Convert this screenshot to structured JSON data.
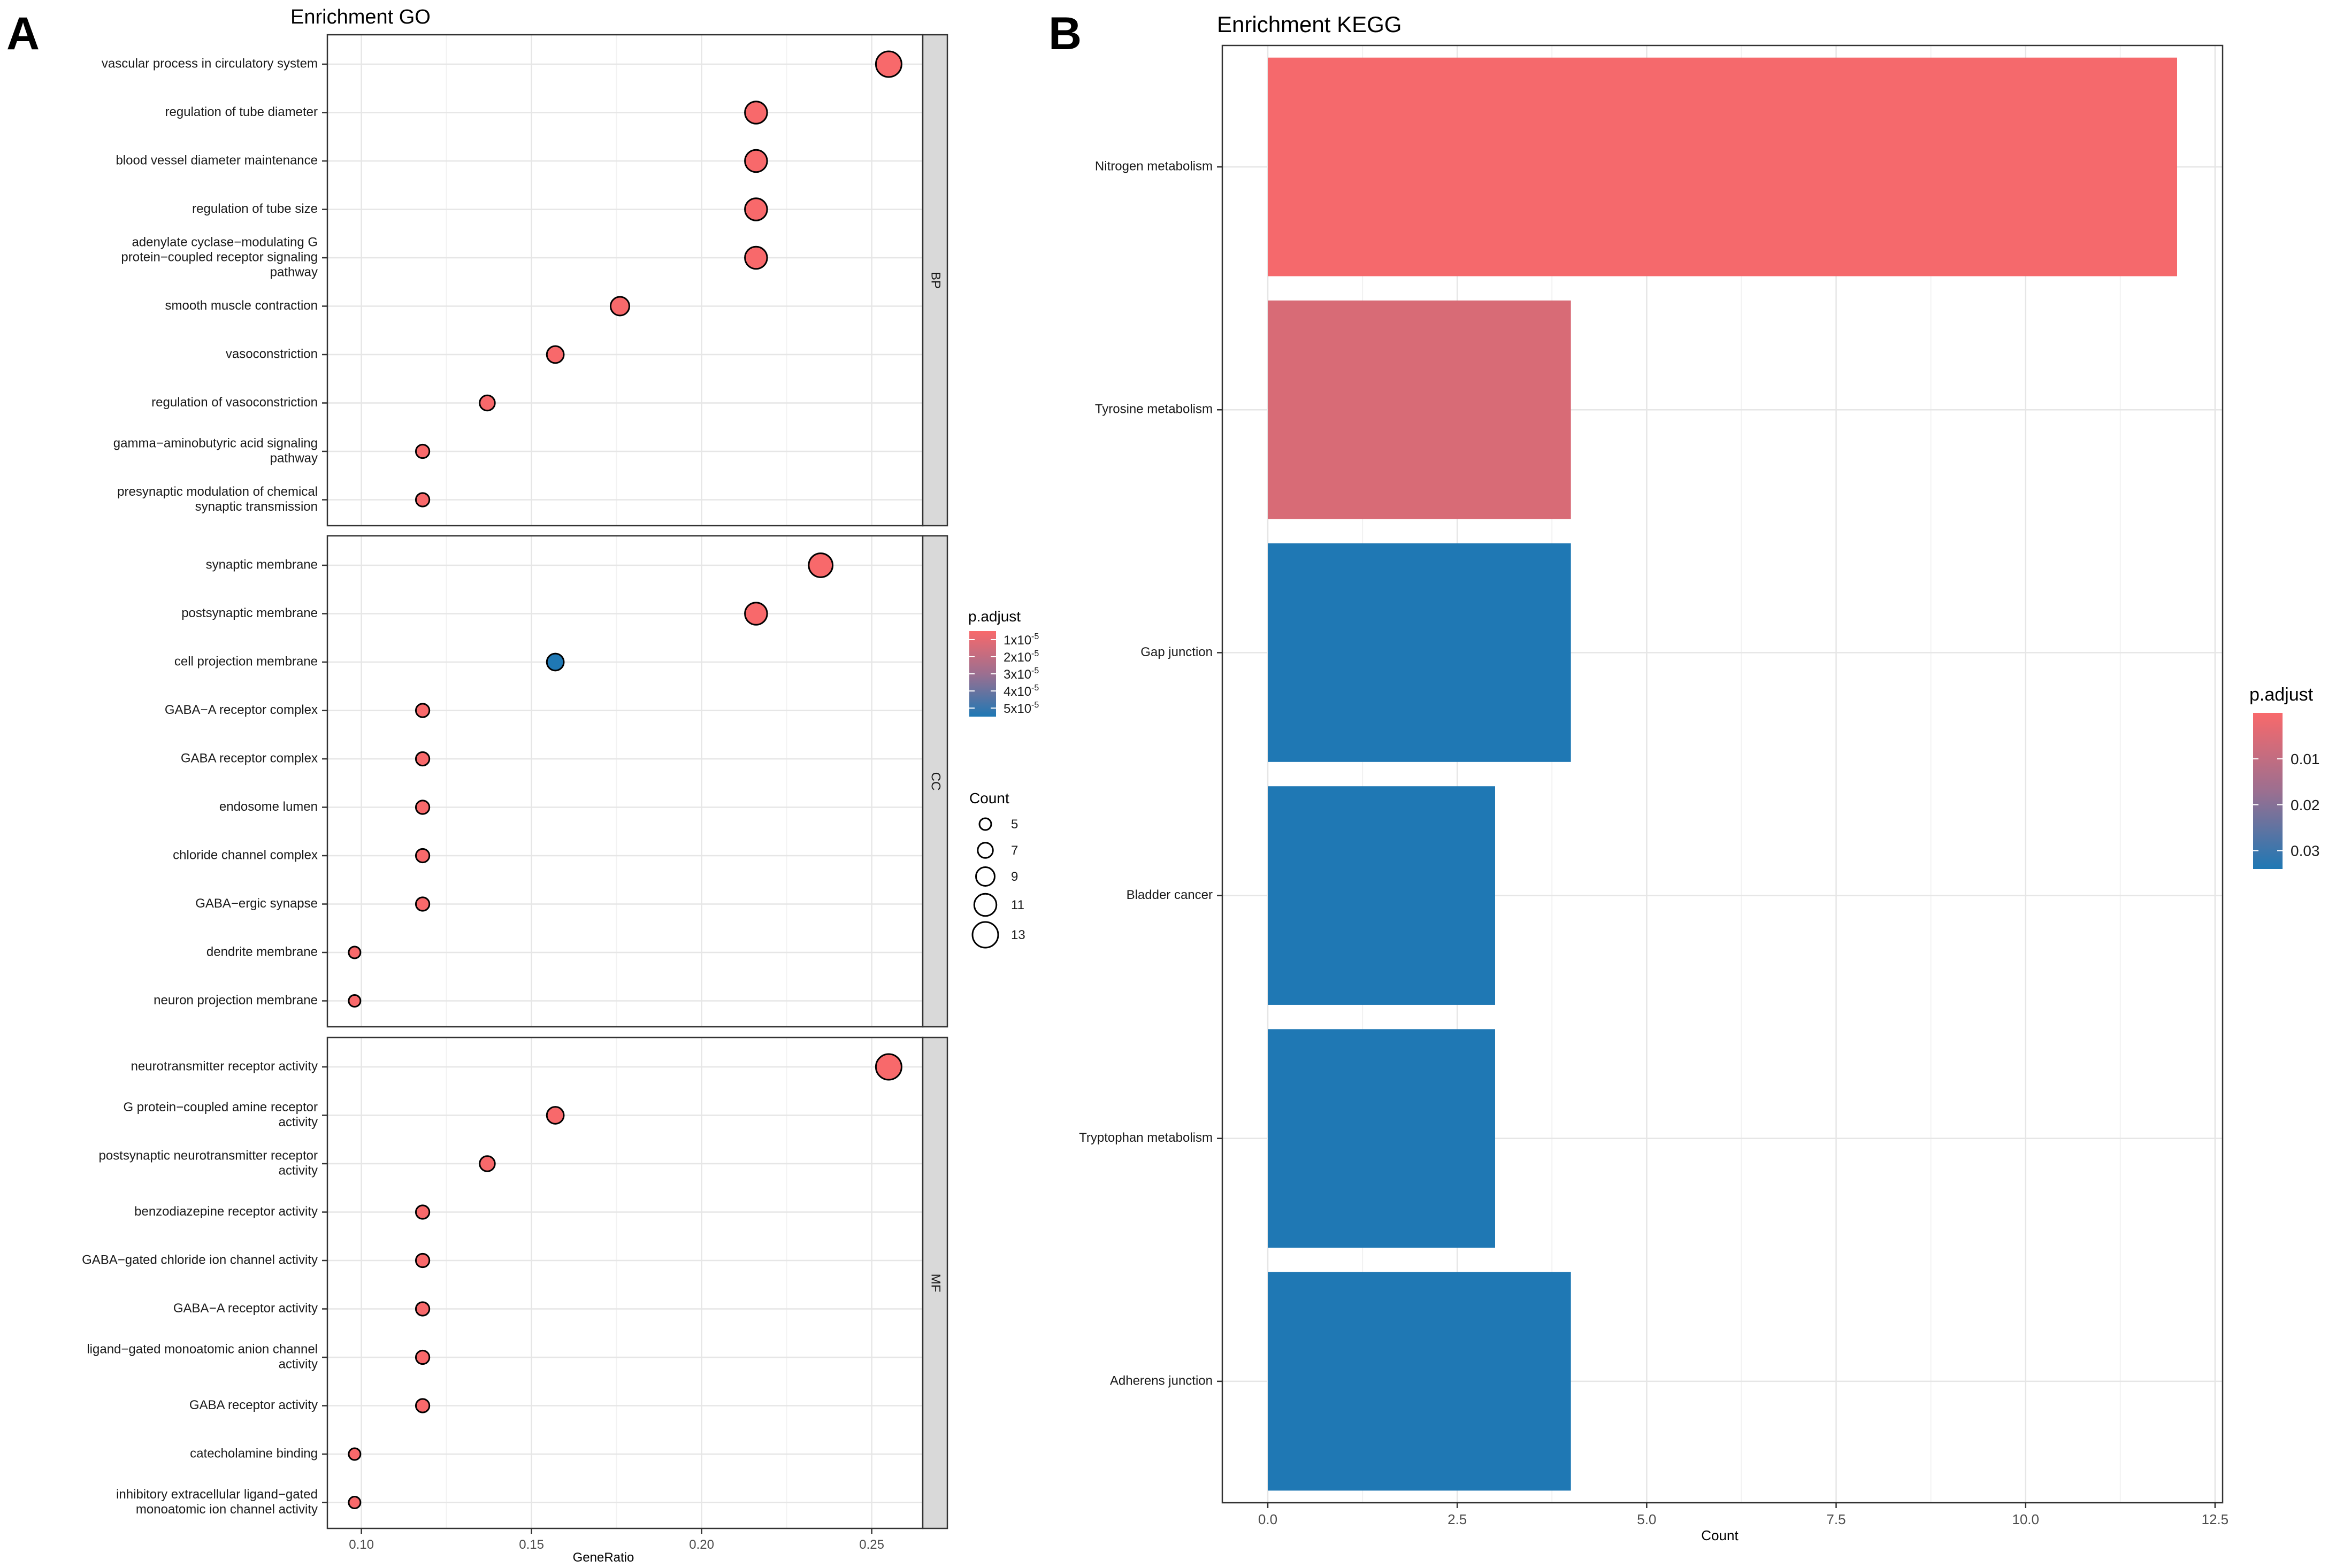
{
  "panel_a": {
    "letter": "A",
    "title": "Enrichment GO",
    "xlabel": "GeneRatio",
    "legend_color_title": "p.adjust",
    "legend_size_title": "Count"
  },
  "panel_b": {
    "letter": "B",
    "title": "Enrichment KEGG",
    "xlabel": "Count",
    "legend_color_title": "p.adjust"
  },
  "chart_data": [
    {
      "type": "scatter",
      "title": "Enrichment GO",
      "xlabel": "GeneRatio",
      "ylabel": "",
      "xlim": [
        0.09,
        0.265
      ],
      "xticks": [
        0.1,
        0.15,
        0.2,
        0.25
      ],
      "xtick_labels": [
        "0.10",
        "0.15",
        "0.20",
        "0.25"
      ],
      "grid": true,
      "color_legend": {
        "title": "p.adjust",
        "min": 5e-06,
        "max": 5.5e-05,
        "ticks": [
          1e-05,
          2e-05,
          3e-05,
          4e-05,
          5e-05
        ],
        "tick_mantissas": [
          "1x10",
          "2x10",
          "3x10",
          "4x10",
          "5x10"
        ],
        "tick_exponents": [
          "-5",
          "-5",
          "-5",
          "-5",
          "-5"
        ],
        "low_color": "#F8696B",
        "high_color": "#1F78B4"
      },
      "size_legend": {
        "title": "Count",
        "values": [
          5,
          7,
          9,
          11,
          13
        ],
        "labels": [
          "5",
          "7",
          "9",
          "11",
          "13"
        ]
      },
      "facets": [
        {
          "name": "BP",
          "terms": [
            {
              "label": [
                "vascular process in circulatory system"
              ],
              "x": 0.255,
              "count": 13,
              "p_adjust": 5e-06
            },
            {
              "label": [
                "regulation of tube diameter"
              ],
              "x": 0.216,
              "count": 11,
              "p_adjust": 5e-06
            },
            {
              "label": [
                "blood vessel diameter maintenance"
              ],
              "x": 0.216,
              "count": 11,
              "p_adjust": 5e-06
            },
            {
              "label": [
                "regulation of tube size"
              ],
              "x": 0.216,
              "count": 11,
              "p_adjust": 5e-06
            },
            {
              "label": [
                "adenylate cyclase−modulating G",
                "protein−coupled receptor signaling",
                "pathway"
              ],
              "x": 0.216,
              "count": 11,
              "p_adjust": 5e-06
            },
            {
              "label": [
                "smooth muscle contraction"
              ],
              "x": 0.176,
              "count": 9,
              "p_adjust": 5e-06
            },
            {
              "label": [
                "vasoconstriction"
              ],
              "x": 0.157,
              "count": 8,
              "p_adjust": 5e-06
            },
            {
              "label": [
                "regulation of vasoconstriction"
              ],
              "x": 0.137,
              "count": 7,
              "p_adjust": 5e-06
            },
            {
              "label": [
                "gamma−aminobutyric acid signaling",
                "pathway"
              ],
              "x": 0.118,
              "count": 6,
              "p_adjust": 5e-06
            },
            {
              "label": [
                "presynaptic modulation of chemical",
                "synaptic transmission"
              ],
              "x": 0.118,
              "count": 6,
              "p_adjust": 5e-06
            }
          ]
        },
        {
          "name": "CC",
          "terms": [
            {
              "label": [
                "synaptic membrane"
              ],
              "x": 0.235,
              "count": 12,
              "p_adjust": 5e-06
            },
            {
              "label": [
                "postsynaptic membrane"
              ],
              "x": 0.216,
              "count": 11,
              "p_adjust": 5e-06
            },
            {
              "label": [
                "cell projection membrane"
              ],
              "x": 0.157,
              "count": 8,
              "p_adjust": 5.5e-05
            },
            {
              "label": [
                "GABA−A receptor complex"
              ],
              "x": 0.118,
              "count": 6,
              "p_adjust": 5e-06
            },
            {
              "label": [
                "GABA receptor complex"
              ],
              "x": 0.118,
              "count": 6,
              "p_adjust": 5e-06
            },
            {
              "label": [
                "endosome lumen"
              ],
              "x": 0.118,
              "count": 6,
              "p_adjust": 5e-06
            },
            {
              "label": [
                "chloride channel complex"
              ],
              "x": 0.118,
              "count": 6,
              "p_adjust": 5e-06
            },
            {
              "label": [
                "GABA−ergic synapse"
              ],
              "x": 0.118,
              "count": 6,
              "p_adjust": 5e-06
            },
            {
              "label": [
                "dendrite membrane"
              ],
              "x": 0.098,
              "count": 5,
              "p_adjust": 5e-06
            },
            {
              "label": [
                "neuron projection membrane"
              ],
              "x": 0.098,
              "count": 5,
              "p_adjust": 5e-06
            }
          ]
        },
        {
          "name": "MF",
          "terms": [
            {
              "label": [
                "neurotransmitter receptor activity"
              ],
              "x": 0.255,
              "count": 13,
              "p_adjust": 5e-06
            },
            {
              "label": [
                "G protein−coupled amine receptor",
                "activity"
              ],
              "x": 0.157,
              "count": 8,
              "p_adjust": 5e-06
            },
            {
              "label": [
                "postsynaptic neurotransmitter receptor",
                "activity"
              ],
              "x": 0.137,
              "count": 7,
              "p_adjust": 5e-06
            },
            {
              "label": [
                "benzodiazepine receptor activity"
              ],
              "x": 0.118,
              "count": 6,
              "p_adjust": 5e-06
            },
            {
              "label": [
                "GABA−gated chloride ion channel activity"
              ],
              "x": 0.118,
              "count": 6,
              "p_adjust": 5e-06
            },
            {
              "label": [
                "GABA−A receptor activity"
              ],
              "x": 0.118,
              "count": 6,
              "p_adjust": 5e-06
            },
            {
              "label": [
                "ligand−gated monoatomic anion channel",
                "activity"
              ],
              "x": 0.118,
              "count": 6,
              "p_adjust": 5e-06
            },
            {
              "label": [
                "GABA receptor activity"
              ],
              "x": 0.118,
              "count": 6,
              "p_adjust": 5e-06
            },
            {
              "label": [
                "catecholamine binding"
              ],
              "x": 0.098,
              "count": 5,
              "p_adjust": 5e-06
            },
            {
              "label": [
                "inhibitory extracellular ligand−gated",
                "monoatomic ion channel activity"
              ],
              "x": 0.098,
              "count": 5,
              "p_adjust": 5e-06
            }
          ]
        }
      ]
    },
    {
      "type": "bar",
      "orientation": "horizontal",
      "title": "Enrichment KEGG",
      "xlabel": "Count",
      "ylabel": "",
      "xlim": [
        -0.6,
        12.6
      ],
      "xticks": [
        0,
        2.5,
        5,
        7.5,
        10,
        12.5
      ],
      "xtick_labels": [
        "0.0",
        "2.5",
        "5.0",
        "7.5",
        "10.0",
        "12.5"
      ],
      "grid": true,
      "categories": [
        "Nitrogen metabolism",
        "Tyrosine metabolism",
        "Gap junction",
        "Bladder cancer",
        "Tryptophan metabolism",
        "Adherens junction"
      ],
      "values": [
        12,
        4,
        4,
        3,
        3,
        4
      ],
      "p_adjust": [
        0.0005,
        0.005,
        0.034,
        0.034,
        0.034,
        0.034
      ],
      "color_legend": {
        "title": "p.adjust",
        "min": 0.0,
        "max": 0.034,
        "ticks": [
          0.01,
          0.02,
          0.03
        ],
        "tick_labels": [
          "0.01",
          "0.02",
          "0.03"
        ],
        "low_color": "#F8696B",
        "high_color": "#1F78B4"
      }
    }
  ]
}
